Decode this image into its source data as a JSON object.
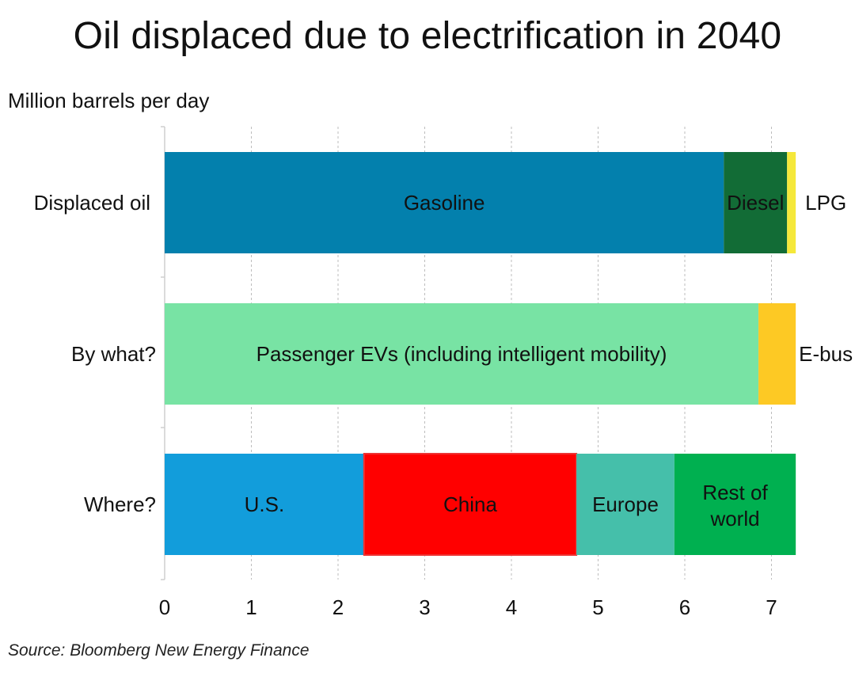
{
  "title": "Oil displaced due to electrification in 2040",
  "units_label": "Million barrels per day",
  "source": "Source: Bloomberg New Energy Finance",
  "chart_data": {
    "type": "bar",
    "orientation": "horizontal",
    "stacked": true,
    "title": "Oil displaced due to electrification in 2040",
    "ylabel": "Million barrels per day",
    "xlim": [
      0,
      7.3
    ],
    "xticks": [
      0,
      1,
      2,
      3,
      4,
      5,
      6,
      7
    ],
    "grid": "vertical dashed",
    "categories": [
      "Displaced oil",
      "By what?",
      "Where?"
    ],
    "bars": [
      {
        "category": "Displaced oil",
        "segments": [
          {
            "label": "Gasoline",
            "value": 6.45,
            "color": "#0380AD"
          },
          {
            "label": "Diesel",
            "value": 0.73,
            "color": "#126C36"
          },
          {
            "label": "LPG",
            "value": 0.1,
            "color": "#F5E83A"
          }
        ]
      },
      {
        "category": "By what?",
        "segments": [
          {
            "label": "Passenger EVs (including intelligent mobility)",
            "value": 6.85,
            "color": "#78E3A4"
          },
          {
            "label": "E-bus",
            "value": 0.43,
            "color": "#FDC924"
          }
        ]
      },
      {
        "category": "Where?",
        "segments": [
          {
            "label": "U.S.",
            "value": 2.3,
            "color": "#129DDB"
          },
          {
            "label": "China",
            "value": 2.45,
            "color": "#FF0000"
          },
          {
            "label": "Europe",
            "value": 1.13,
            "color": "#45BFAA"
          },
          {
            "label": "Rest of world",
            "value": 1.4,
            "color": "#00B050"
          }
        ]
      }
    ]
  }
}
